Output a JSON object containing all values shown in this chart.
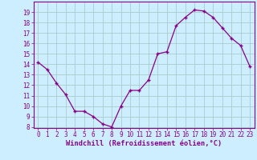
{
  "x": [
    0,
    1,
    2,
    3,
    4,
    5,
    6,
    7,
    8,
    9,
    10,
    11,
    12,
    13,
    14,
    15,
    16,
    17,
    18,
    19,
    20,
    21,
    22,
    23
  ],
  "y": [
    14.2,
    13.5,
    12.2,
    11.1,
    9.5,
    9.5,
    9.0,
    8.3,
    8.0,
    10.0,
    11.5,
    11.5,
    12.5,
    15.0,
    15.2,
    17.7,
    18.5,
    19.2,
    19.1,
    18.5,
    17.5,
    16.5,
    15.8,
    13.8
  ],
  "line_color": "#880088",
  "marker": "+",
  "bg_color": "#cceeff",
  "grid_color": "#aacccc",
  "xlabel": "Windchill (Refroidissement éolien,°C)",
  "ylim_min": 8,
  "ylim_max": 20,
  "xlim_min": -0.5,
  "xlim_max": 23.5,
  "yticks": [
    8,
    9,
    10,
    11,
    12,
    13,
    14,
    15,
    16,
    17,
    18,
    19
  ],
  "xticks": [
    0,
    1,
    2,
    3,
    4,
    5,
    6,
    7,
    8,
    9,
    10,
    11,
    12,
    13,
    14,
    15,
    16,
    17,
    18,
    19,
    20,
    21,
    22,
    23
  ],
  "tick_color": "#880088",
  "label_fontsize": 5.5,
  "xlabel_fontsize": 6.2
}
